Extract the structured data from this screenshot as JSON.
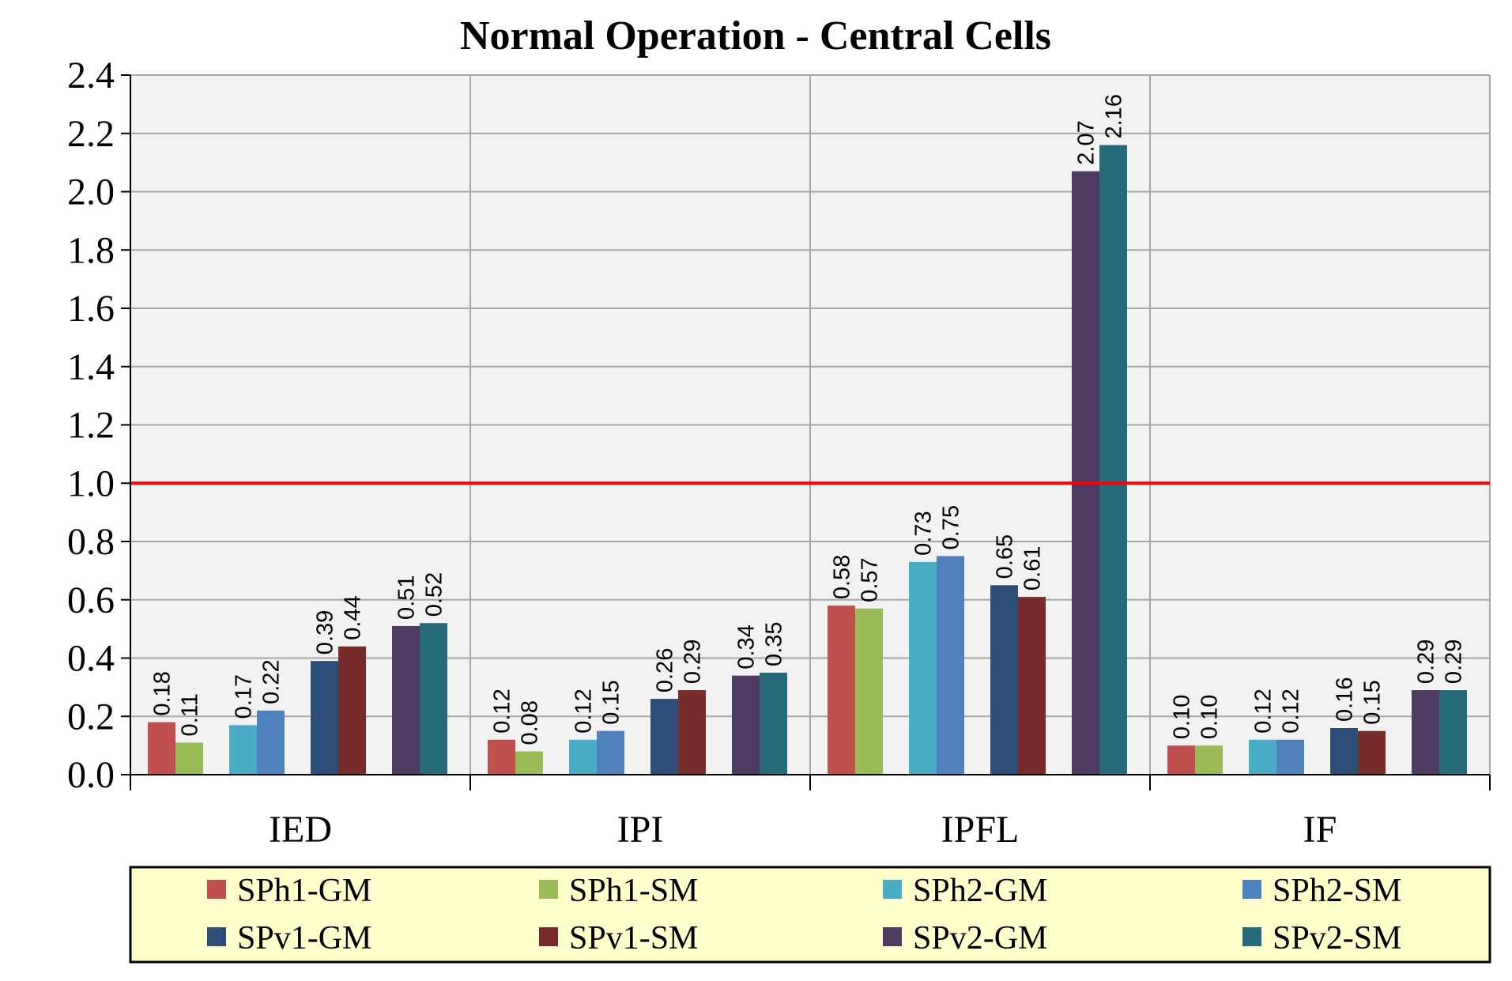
{
  "chart_data": {
    "type": "bar",
    "title": "Normal Operation - Central Cells",
    "xlabel": "",
    "ylabel": "",
    "categories": [
      "IED",
      "IPI",
      "IPFL",
      "IF"
    ],
    "ylim": [
      0,
      2.4
    ],
    "yticks": [
      "0.0",
      "0.2",
      "0.4",
      "0.6",
      "0.8",
      "1.0",
      "1.2",
      "1.4",
      "1.6",
      "1.8",
      "2.0",
      "2.2",
      "2.4"
    ],
    "grid": true,
    "reference_line": {
      "value": 1.0,
      "color": "#ff0000"
    },
    "legend_position": "bottom",
    "series": [
      {
        "name": "SPh1-GM",
        "color": "#c0504d",
        "values": [
          0.18,
          0.12,
          0.58,
          0.1
        ],
        "labels": [
          "0.18",
          "0.12",
          "0.58",
          "0.10"
        ]
      },
      {
        "name": "SPh1-SM",
        "color": "#9bbb59",
        "values": [
          0.11,
          0.08,
          0.57,
          0.1
        ],
        "labels": [
          "0.11",
          "0.08",
          "0.57",
          "0.10"
        ]
      },
      {
        "name": "SPh2-GM",
        "color": "#4bacc6",
        "values": [
          0.17,
          0.12,
          0.73,
          0.12
        ],
        "labels": [
          "0.17",
          "0.12",
          "0.73",
          "0.12"
        ]
      },
      {
        "name": "SPh2-SM",
        "color": "#4f81bd",
        "values": [
          0.22,
          0.15,
          0.75,
          0.12
        ],
        "labels": [
          "0.22",
          "0.15",
          "0.75",
          "0.12"
        ]
      },
      {
        "name": "SPv1-GM",
        "color": "#2c4d75",
        "values": [
          0.39,
          0.26,
          0.65,
          0.16
        ],
        "labels": [
          "0.39",
          "0.26",
          "0.65",
          "0.16"
        ]
      },
      {
        "name": "SPv1-SM",
        "color": "#772c2a",
        "values": [
          0.44,
          0.29,
          0.61,
          0.15
        ],
        "labels": [
          "0.44",
          "0.29",
          "0.61",
          "0.15"
        ]
      },
      {
        "name": "SPv2-GM",
        "color": "#4d3b62",
        "values": [
          0.51,
          0.34,
          2.07,
          0.29
        ],
        "labels": [
          "0.51",
          "0.34",
          "2.07",
          "0.29"
        ]
      },
      {
        "name": "SPv2-SM",
        "color": "#276a7c",
        "values": [
          0.52,
          0.35,
          2.16,
          0.29
        ],
        "labels": [
          "0.52",
          "0.35",
          "2.16",
          "0.29"
        ]
      }
    ]
  }
}
